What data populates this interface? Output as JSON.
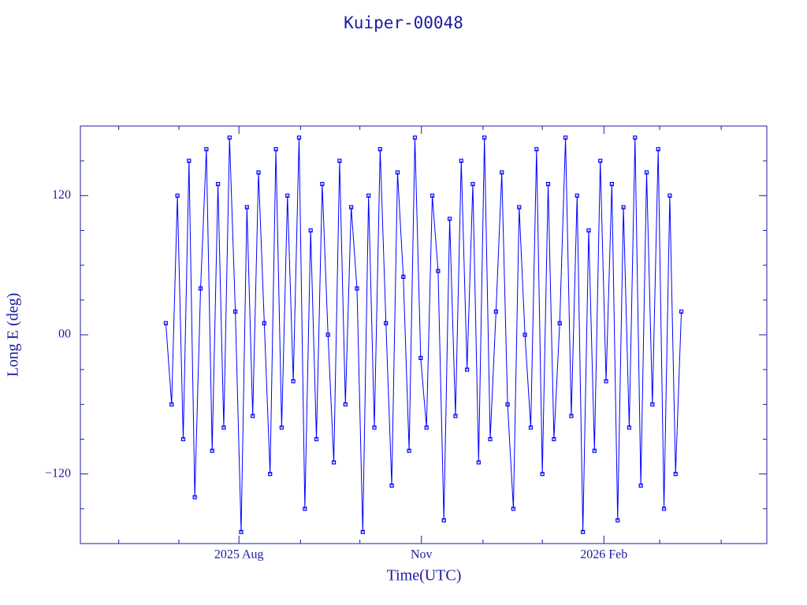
{
  "chart_data": {
    "type": "line",
    "title": "Kuiper-00048",
    "xlabel": "Time(UTC)",
    "ylabel": "Long E (deg)",
    "color": "#0000ff",
    "marker": "square",
    "xlim": [
      2025.362,
      2026.31
    ],
    "ylim": [
      -180,
      180
    ],
    "xticks": [
      {
        "value": 2025.581,
        "label": "2025 Aug"
      },
      {
        "value": 2025.833,
        "label": "Nov"
      },
      {
        "value": 2026.085,
        "label": "2026 Feb"
      }
    ],
    "xminorticks": [
      2025.415,
      2025.498,
      2025.666,
      2025.748,
      2025.918,
      2026.0,
      2026.162,
      2026.247
    ],
    "yticks": [
      {
        "value": -120,
        "label": "−120"
      },
      {
        "value": 0,
        "label": "00"
      },
      120
    ],
    "yminorticks": [
      -150,
      -90,
      -60,
      -30,
      30,
      60,
      90,
      150
    ],
    "x": [
      2025.48,
      2025.488,
      2025.496,
      2025.504,
      2025.512,
      2025.52,
      2025.528,
      2025.536,
      2025.544,
      2025.552,
      2025.56,
      2025.568,
      2025.576,
      2025.584,
      2025.592,
      2025.6,
      2025.608,
      2025.616,
      2025.624,
      2025.632,
      2025.64,
      2025.648,
      2025.656,
      2025.664,
      2025.672,
      2025.68,
      2025.688,
      2025.696,
      2025.704,
      2025.712,
      2025.72,
      2025.728,
      2025.736,
      2025.744,
      2025.752,
      2025.76,
      2025.768,
      2025.776,
      2025.784,
      2025.792,
      2025.8,
      2025.808,
      2025.816,
      2025.824,
      2025.832,
      2025.84,
      2025.848,
      2025.856,
      2025.864,
      2025.872,
      2025.88,
      2025.888,
      2025.896,
      2025.904,
      2025.912,
      2025.92,
      2025.928,
      2025.936,
      2025.944,
      2025.952,
      2025.96,
      2025.968,
      2025.976,
      2025.984,
      2025.992,
      2026.0,
      2026.008,
      2026.016,
      2026.024,
      2026.032,
      2026.04,
      2026.048,
      2026.056,
      2026.064,
      2026.072,
      2026.08,
      2026.088,
      2026.096,
      2026.104,
      2026.112,
      2026.12,
      2026.128,
      2026.136,
      2026.144,
      2026.152,
      2026.16,
      2026.168,
      2026.176,
      2026.184,
      2026.192
    ],
    "values": [
      10,
      -60,
      120,
      -90,
      150,
      -140,
      40,
      160,
      -100,
      130,
      -80,
      170,
      20,
      -170,
      110,
      -70,
      140,
      10,
      -120,
      160,
      -80,
      120,
      -40,
      170,
      -150,
      90,
      -90,
      130,
      0,
      -110,
      150,
      -60,
      110,
      40,
      -170,
      120,
      -80,
      160,
      10,
      -130,
      140,
      50,
      -100,
      170,
      -20,
      -80,
      120,
      55,
      -160,
      100,
      -70,
      150,
      -30,
      130,
      -110,
      170,
      -90,
      20,
      140,
      -60,
      -150,
      110,
      0,
      -80,
      160,
      -120,
      130,
      -90,
      10,
      170,
      -70,
      120,
      -170,
      90,
      -100,
      150,
      -40,
      130,
      -160,
      110,
      -80,
      170,
      -130,
      140,
      -60,
      160,
      -150,
      120,
      -120,
      20
    ]
  }
}
